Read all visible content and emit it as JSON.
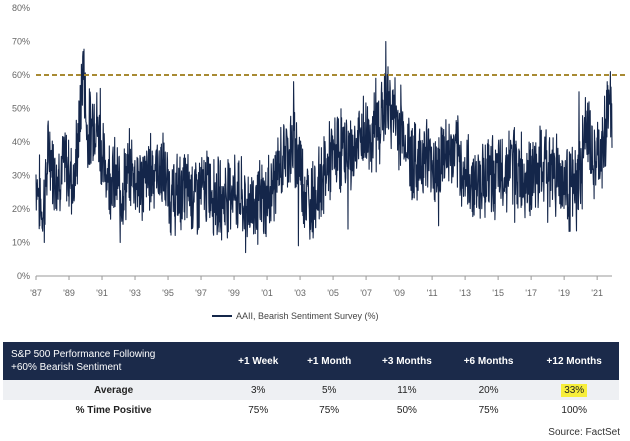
{
  "chart_data": {
    "type": "line",
    "series": [
      {
        "name": "AAII, Bearish Sentiment Survey (%)",
        "color": "#14264a"
      }
    ],
    "x_ticks": [
      "'87",
      "'89",
      "'91",
      "'93",
      "'95",
      "'97",
      "'99",
      "'01",
      "'03",
      "'05",
      "'07",
      "'09",
      "'11",
      "'13",
      "'15",
      "'17",
      "'19",
      "'21"
    ],
    "x_start_year": 1987,
    "x_end_year": 2021.9,
    "y_ticks": [
      "0%",
      "10%",
      "20%",
      "30%",
      "40%",
      "50%",
      "60%",
      "70%",
      "80%"
    ],
    "ylim": [
      0,
      80
    ],
    "reference_line": {
      "value": 60,
      "style": "dashed",
      "color": "#a88a33"
    },
    "anchors": [
      [
        1987.0,
        30
      ],
      [
        1987.4,
        18
      ],
      [
        1987.8,
        38
      ],
      [
        1988.2,
        30
      ],
      [
        1988.8,
        33
      ],
      [
        1989.3,
        28
      ],
      [
        1989.7,
        48
      ],
      [
        1989.85,
        67
      ],
      [
        1990.1,
        42
      ],
      [
        1990.6,
        48
      ],
      [
        1991.1,
        33
      ],
      [
        1991.6,
        30
      ],
      [
        1992.2,
        26
      ],
      [
        1992.8,
        32
      ],
      [
        1993.4,
        27
      ],
      [
        1994.0,
        32
      ],
      [
        1994.6,
        32
      ],
      [
        1995.2,
        23
      ],
      [
        1996.0,
        26
      ],
      [
        1996.8,
        24
      ],
      [
        1997.5,
        27
      ],
      [
        1998.2,
        22
      ],
      [
        1998.9,
        27
      ],
      [
        1999.6,
        21
      ],
      [
        2000.2,
        22
      ],
      [
        2000.9,
        22
      ],
      [
        2001.6,
        30
      ],
      [
        2002.2,
        38
      ],
      [
        2002.8,
        38
      ],
      [
        2003.4,
        23
      ],
      [
        2004.0,
        25
      ],
      [
        2004.7,
        33
      ],
      [
        2005.4,
        38
      ],
      [
        2006.1,
        36
      ],
      [
        2006.8,
        42
      ],
      [
        2007.5,
        42
      ],
      [
        2008.0,
        49
      ],
      [
        2008.4,
        52
      ],
      [
        2008.9,
        45
      ],
      [
        2009.4,
        40
      ],
      [
        2010.0,
        33
      ],
      [
        2010.6,
        37
      ],
      [
        2011.2,
        32
      ],
      [
        2011.8,
        37
      ],
      [
        2012.4,
        36
      ],
      [
        2013.0,
        30
      ],
      [
        2013.7,
        28
      ],
      [
        2014.4,
        31
      ],
      [
        2015.1,
        29
      ],
      [
        2015.8,
        34
      ],
      [
        2016.5,
        30
      ],
      [
        2017.2,
        30
      ],
      [
        2017.9,
        33
      ],
      [
        2018.6,
        31
      ],
      [
        2019.2,
        27
      ],
      [
        2019.8,
        25
      ],
      [
        2020.3,
        45
      ],
      [
        2020.8,
        33
      ],
      [
        2021.3,
        36
      ],
      [
        2021.7,
        52
      ],
      [
        2021.9,
        45
      ]
    ],
    "spikes": [
      [
        1989.85,
        67
      ],
      [
        1990.9,
        56
      ],
      [
        2002.6,
        58
      ],
      [
        2007.6,
        59
      ],
      [
        2008.2,
        70
      ],
      [
        2009.1,
        57
      ],
      [
        2019.9,
        55
      ],
      [
        2020.5,
        52
      ],
      [
        2021.6,
        58
      ],
      [
        2021.8,
        61
      ]
    ],
    "troughs": [
      [
        1987.5,
        10
      ],
      [
        1992.1,
        10
      ],
      [
        1999.7,
        7
      ],
      [
        2002.9,
        9
      ],
      [
        2003.6,
        11
      ],
      [
        2005.9,
        14
      ],
      [
        2011.4,
        15
      ],
      [
        2016.0,
        16
      ],
      [
        2018.0,
        16
      ],
      [
        2020.1,
        20
      ]
    ]
  },
  "table": {
    "header_title_line1": "S&P 500 Performance Following",
    "header_title_line2": "+60% Bearish Sentiment",
    "columns": [
      "+1 Week",
      "+1 Month",
      "+3 Months",
      "+6 Months",
      "+12 Months"
    ],
    "rows": [
      {
        "label": "Average",
        "values": [
          "3%",
          "5%",
          "11%",
          "20%",
          "33%"
        ]
      },
      {
        "label": "% Time Positive",
        "values": [
          "75%",
          "75%",
          "50%",
          "75%",
          "100%"
        ]
      }
    ],
    "highlight_color": "#f7ee3a"
  },
  "source": "Source: FactSet"
}
